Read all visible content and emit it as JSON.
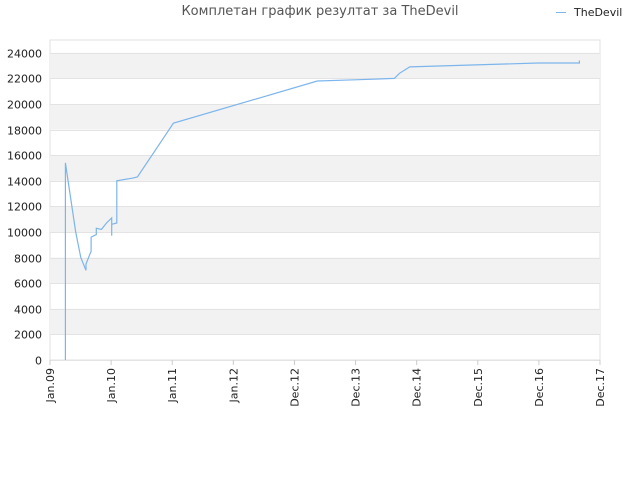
{
  "chart_data": {
    "type": "line",
    "title": "Комплетан график резултат за TheDevil",
    "xlabel": "",
    "ylabel": "",
    "legend_position": "top-right",
    "grid": true,
    "series_color": "#7cb5ec",
    "band_color": "#f2f2f2",
    "x_ticks": [
      "Jan.09",
      "Jan.10",
      "Jan.11",
      "Jan.12",
      "Dec.12",
      "Dec.13",
      "Dec.14",
      "Dec.15",
      "Dec.16",
      "Dec.17"
    ],
    "y_ticks": [
      0,
      2000,
      4000,
      6000,
      8000,
      10000,
      12000,
      14000,
      16000,
      18000,
      20000,
      22000,
      24000
    ],
    "xlim": [
      "2009-01",
      "2017-12"
    ],
    "ylim": [
      0,
      25000
    ],
    "series": [
      {
        "name": "TheDevil",
        "points": [
          [
            "2009-04",
            0
          ],
          [
            "2009-04",
            15400
          ],
          [
            "2009-06",
            10000
          ],
          [
            "2009-07",
            8000
          ],
          [
            "2009-08",
            7000
          ],
          [
            "2009-08",
            7500
          ],
          [
            "2009-09",
            8500
          ],
          [
            "2009-09",
            9600
          ],
          [
            "2009-10",
            9800
          ],
          [
            "2009-10",
            10300
          ],
          [
            "2009-11",
            10200
          ],
          [
            "2009-12",
            10700
          ],
          [
            "2010-01",
            11100
          ],
          [
            "2010-01",
            9700
          ],
          [
            "2010-01",
            10600
          ],
          [
            "2010-02",
            10700
          ],
          [
            "2010-02",
            14000
          ],
          [
            "2010-05",
            14200
          ],
          [
            "2010-06",
            14300
          ],
          [
            "2011-01",
            18500
          ],
          [
            "2013-05",
            21800
          ],
          [
            "2014-01",
            21900
          ],
          [
            "2014-08",
            22000
          ],
          [
            "2014-09",
            22400
          ],
          [
            "2014-11",
            22900
          ],
          [
            "2016-12",
            23200
          ],
          [
            "2017-08",
            23200
          ],
          [
            "2017-08",
            23400
          ]
        ]
      }
    ]
  }
}
